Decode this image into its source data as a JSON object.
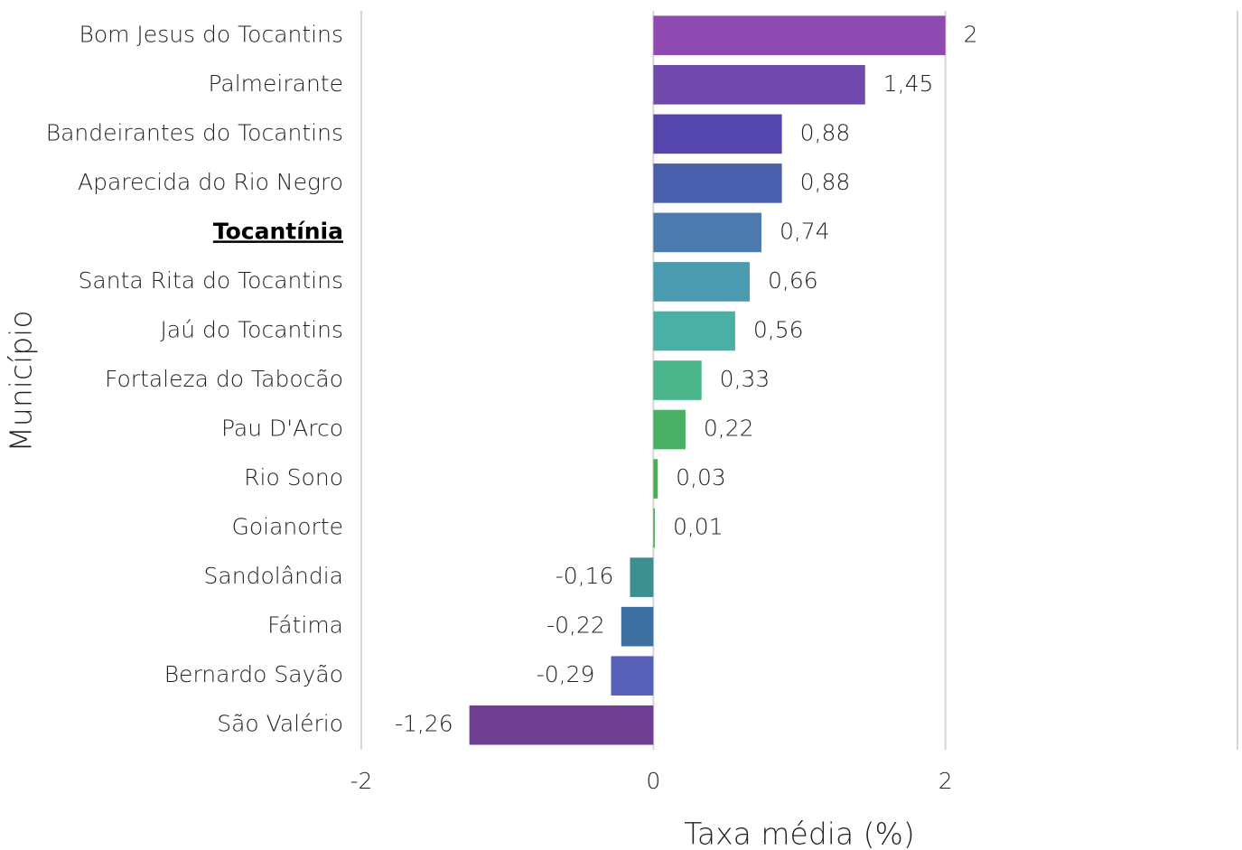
{
  "chart_data": {
    "type": "barh",
    "xlabel": "Taxa média (%)",
    "ylabel": "Município",
    "categories": [
      "Bom Jesus do Tocantins",
      "Palmeirante",
      "Bandeirantes do Tocantins",
      "Aparecida do Rio Negro",
      "Tocantínia",
      "Santa Rita do Tocantins",
      "Jaú do Tocantins",
      "Fortaleza do Tabocão",
      "Pau D'Arco",
      "Rio Sono",
      "Goianorte",
      "Sandolândia",
      "Fátima",
      "Bernardo Sayão",
      "São Valério"
    ],
    "values": [
      2,
      1.45,
      0.88,
      0.88,
      0.74,
      0.66,
      0.56,
      0.33,
      0.22,
      0.03,
      0.01,
      -0.16,
      -0.22,
      -0.29,
      -1.26
    ],
    "value_labels": [
      "2",
      "1,45",
      "0,88",
      "0,88",
      "0,74",
      "0,66",
      "0,56",
      "0,33",
      "0,22",
      "0,03",
      "0,01",
      "-0,16",
      "-0,22",
      "-0,29",
      "-1,26"
    ],
    "colors": [
      "#8e4ab0",
      "#7049ad",
      "#5446ad",
      "#4a5fad",
      "#4a7aae",
      "#4a9ab0",
      "#4ab0a5",
      "#4ab58a",
      "#4ab065",
      "#4aae52",
      "#4aa860",
      "#3d8f8f",
      "#3d70a0",
      "#5860b8",
      "#6e3e90"
    ],
    "highlight": 4,
    "xlim": [
      -2,
      4
    ],
    "xticks": [
      -2,
      0,
      2
    ],
    "grid": true
  }
}
